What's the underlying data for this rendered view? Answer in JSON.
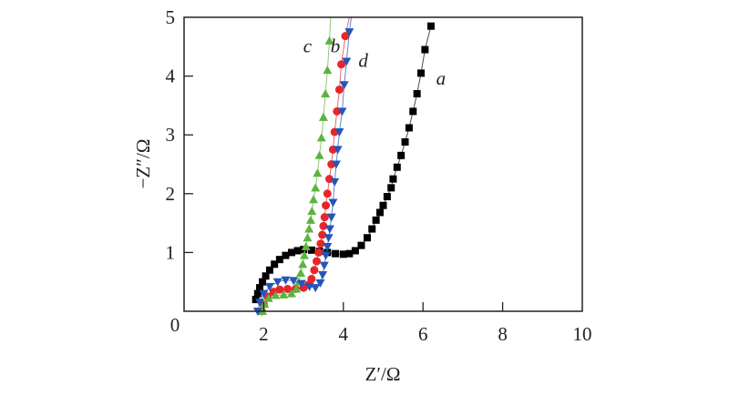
{
  "chart_data": {
    "type": "scatter",
    "title": "",
    "xlabel": "Z′/Ω",
    "ylabel": "−Z″/Ω",
    "xlim": [
      0,
      10
    ],
    "ylim": [
      0,
      5
    ],
    "xticks": [
      "0",
      "2",
      "4",
      "6",
      "8",
      "10"
    ],
    "yticks": [
      "1",
      "2",
      "3",
      "4",
      "5"
    ],
    "xtick_values": [
      0,
      2,
      4,
      6,
      8,
      10
    ],
    "ytick_values": [
      1,
      2,
      3,
      4,
      5
    ],
    "grid": false,
    "series": [
      {
        "name": "a",
        "color": "#000000",
        "marker": "square",
        "points": [
          [
            1.8,
            0.2
          ],
          [
            1.85,
            0.3
          ],
          [
            1.9,
            0.4
          ],
          [
            1.97,
            0.5
          ],
          [
            2.05,
            0.6
          ],
          [
            2.15,
            0.7
          ],
          [
            2.27,
            0.8
          ],
          [
            2.4,
            0.88
          ],
          [
            2.55,
            0.95
          ],
          [
            2.7,
            1.0
          ],
          [
            2.85,
            1.03
          ],
          [
            3.0,
            1.05
          ],
          [
            3.2,
            1.04
          ],
          [
            3.4,
            1.02
          ],
          [
            3.6,
            1.0
          ],
          [
            3.8,
            0.98
          ],
          [
            4.0,
            0.97
          ],
          [
            4.15,
            0.98
          ],
          [
            4.3,
            1.03
          ],
          [
            4.45,
            1.12
          ],
          [
            4.6,
            1.25
          ],
          [
            4.72,
            1.4
          ],
          [
            4.82,
            1.55
          ],
          [
            4.92,
            1.68
          ],
          [
            5.0,
            1.8
          ],
          [
            5.1,
            1.95
          ],
          [
            5.2,
            2.1
          ],
          [
            5.25,
            2.25
          ],
          [
            5.35,
            2.45
          ],
          [
            5.45,
            2.65
          ],
          [
            5.55,
            2.88
          ],
          [
            5.65,
            3.12
          ],
          [
            5.75,
            3.4
          ],
          [
            5.85,
            3.7
          ],
          [
            5.95,
            4.05
          ],
          [
            6.05,
            4.45
          ],
          [
            6.2,
            4.85
          ]
        ]
      },
      {
        "name": "b",
        "color": "#e8262a",
        "marker": "circle",
        "points": [
          [
            1.95,
            0.0
          ],
          [
            2.0,
            0.12
          ],
          [
            2.1,
            0.25
          ],
          [
            2.25,
            0.33
          ],
          [
            2.4,
            0.37
          ],
          [
            2.6,
            0.38
          ],
          [
            2.8,
            0.38
          ],
          [
            3.0,
            0.4
          ],
          [
            3.12,
            0.45
          ],
          [
            3.2,
            0.55
          ],
          [
            3.27,
            0.7
          ],
          [
            3.33,
            0.85
          ],
          [
            3.38,
            1.0
          ],
          [
            3.43,
            1.15
          ],
          [
            3.47,
            1.3
          ],
          [
            3.5,
            1.45
          ],
          [
            3.53,
            1.6
          ],
          [
            3.56,
            1.8
          ],
          [
            3.6,
            2.0
          ],
          [
            3.65,
            2.25
          ],
          [
            3.7,
            2.5
          ],
          [
            3.74,
            2.75
          ],
          [
            3.78,
            3.05
          ],
          [
            3.84,
            3.4
          ],
          [
            3.9,
            3.77
          ],
          [
            3.95,
            4.2
          ],
          [
            4.05,
            4.68
          ],
          [
            4.15,
            5.0
          ]
        ]
      },
      {
        "name": "c",
        "color": "#5db33f",
        "marker": "triangle-up",
        "points": [
          [
            1.97,
            0.0
          ],
          [
            2.02,
            0.12
          ],
          [
            2.12,
            0.22
          ],
          [
            2.3,
            0.27
          ],
          [
            2.5,
            0.28
          ],
          [
            2.7,
            0.3
          ],
          [
            2.82,
            0.38
          ],
          [
            2.88,
            0.5
          ],
          [
            2.93,
            0.65
          ],
          [
            2.98,
            0.8
          ],
          [
            3.02,
            0.95
          ],
          [
            3.06,
            1.1
          ],
          [
            3.1,
            1.25
          ],
          [
            3.14,
            1.4
          ],
          [
            3.18,
            1.55
          ],
          [
            3.21,
            1.7
          ],
          [
            3.25,
            1.9
          ],
          [
            3.3,
            2.1
          ],
          [
            3.35,
            2.35
          ],
          [
            3.4,
            2.65
          ],
          [
            3.45,
            2.95
          ],
          [
            3.5,
            3.3
          ],
          [
            3.55,
            3.7
          ],
          [
            3.6,
            4.1
          ],
          [
            3.65,
            4.6
          ],
          [
            3.68,
            5.0
          ]
        ]
      },
      {
        "name": "d",
        "color": "#2456b8",
        "marker": "triangle-down",
        "points": [
          [
            1.85,
            0.0
          ],
          [
            1.9,
            0.15
          ],
          [
            2.0,
            0.3
          ],
          [
            2.15,
            0.42
          ],
          [
            2.35,
            0.5
          ],
          [
            2.55,
            0.53
          ],
          [
            2.75,
            0.52
          ],
          [
            2.95,
            0.47
          ],
          [
            3.15,
            0.42
          ],
          [
            3.3,
            0.4
          ],
          [
            3.42,
            0.48
          ],
          [
            3.48,
            0.62
          ],
          [
            3.52,
            0.78
          ],
          [
            3.56,
            0.95
          ],
          [
            3.6,
            1.1
          ],
          [
            3.63,
            1.25
          ],
          [
            3.66,
            1.4
          ],
          [
            3.7,
            1.6
          ],
          [
            3.74,
            1.85
          ],
          [
            3.78,
            2.2
          ],
          [
            3.82,
            2.5
          ],
          [
            3.86,
            2.75
          ],
          [
            3.9,
            3.05
          ],
          [
            3.97,
            3.4
          ],
          [
            4.02,
            3.85
          ],
          [
            4.08,
            4.25
          ],
          [
            4.15,
            4.75
          ],
          [
            4.2,
            5.0
          ]
        ]
      }
    ],
    "annotations": [
      {
        "text": "a",
        "x": 6.45,
        "y": 3.95
      },
      {
        "text": "b",
        "x": 3.8,
        "y": 4.5
      },
      {
        "text": "c",
        "x": 3.1,
        "y": 4.5
      },
      {
        "text": "d",
        "x": 4.5,
        "y": 4.25
      }
    ]
  }
}
